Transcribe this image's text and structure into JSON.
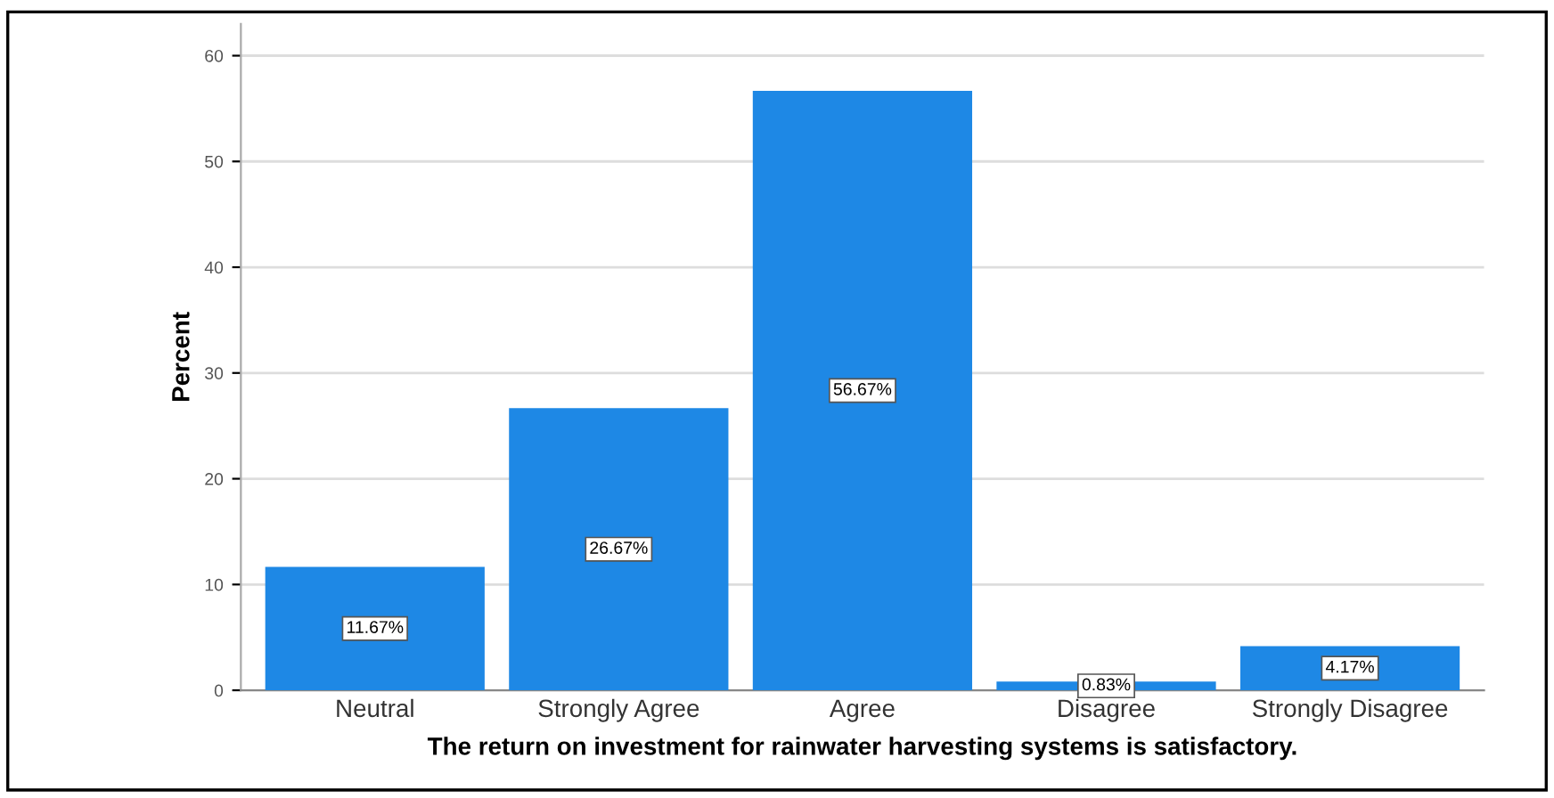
{
  "chart_data": {
    "type": "bar",
    "xlabel": "The return on investment for rainwater harvesting systems is satisfactory.",
    "ylabel": "Percent",
    "categories": [
      "Neutral",
      "Strongly Agree",
      "Agree",
      "Disagree",
      "Strongly Disagree"
    ],
    "values": [
      11.67,
      26.67,
      56.67,
      0.83,
      4.17
    ],
    "value_labels": [
      "11.67%",
      "26.67%",
      "56.67%",
      "0.83%",
      "4.17%"
    ],
    "color": "#1e88e5",
    "ylim": [
      0,
      63
    ],
    "yticks": [
      0,
      10,
      20,
      30,
      40,
      50,
      60
    ],
    "grid": "y"
  }
}
